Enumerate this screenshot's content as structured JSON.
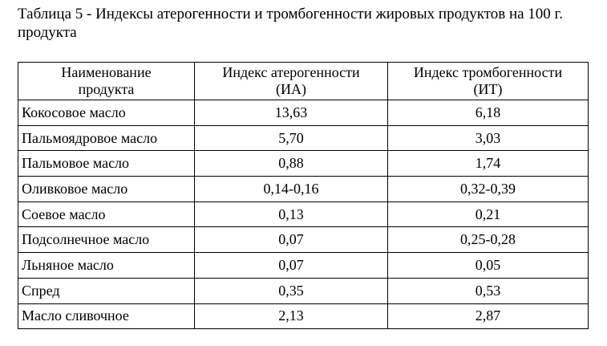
{
  "title": "Таблица 5 - Индексы атерогенности и тромбогенности жировых продуктов на 100 г. продукта",
  "table": {
    "header": [
      "Наименование\nпродукта",
      "Индекс атерогенности\n(ИА)",
      "Индекс тромбогенности\n(ИТ)"
    ],
    "rows": [
      [
        "Кокосовое масло",
        "13,63",
        "6,18"
      ],
      [
        "Пальмоядровое масло",
        "5,70",
        "3,03"
      ],
      [
        "Пальмовое масло",
        "0,88",
        "1,74"
      ],
      [
        "Оливковое масло",
        "0,14-0,16",
        "0,32-0,39"
      ],
      [
        "Соевое масло",
        "0,13",
        "0,21"
      ],
      [
        "Подсолнечное масло",
        "0,07",
        "0,25-0,28"
      ],
      [
        "Льняное масло",
        "0,07",
        "0,05"
      ],
      [
        "Спред",
        "0,35",
        "0,53"
      ],
      [
        "Масло сливочное",
        "2,13",
        "2,87"
      ]
    ]
  }
}
